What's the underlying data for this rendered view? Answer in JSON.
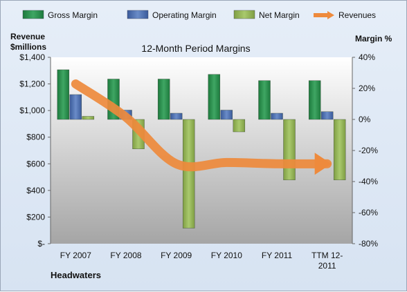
{
  "chart_data": {
    "type": "bar",
    "title": "12-Month Period Margins",
    "company": "Headwaters",
    "categories": [
      "FY 2007",
      "FY 2008",
      "FY 2009",
      "FY 2010",
      "FY 2011",
      "TTM 12-2011"
    ],
    "left_axis": {
      "label_line1": "Revenue",
      "label_line2": "$millions",
      "range": [
        0,
        1400
      ],
      "ticks": [
        0,
        200,
        400,
        600,
        800,
        1000,
        1200,
        1400
      ],
      "tick_labels": [
        "$-",
        "$200",
        "$400",
        "$600",
        "$800",
        "$1,000",
        "$1,200",
        "$1,400"
      ]
    },
    "right_axis": {
      "label": "Margin %",
      "range": [
        -80,
        40
      ],
      "ticks": [
        -80,
        -60,
        -40,
        -20,
        0,
        20,
        40
      ],
      "tick_labels": [
        "-80%",
        "-60%",
        "-40%",
        "-20%",
        "0%",
        "20%",
        "40%"
      ]
    },
    "series": [
      {
        "name": "Gross Margin",
        "axis": "right",
        "color": "#2e8b4f",
        "values": [
          32,
          26,
          26,
          29,
          25,
          25
        ]
      },
      {
        "name": "Operating Margin",
        "axis": "right",
        "color": "#4f6fae",
        "values": [
          16,
          6,
          4,
          6,
          4,
          5
        ]
      },
      {
        "name": "Net Margin",
        "axis": "right",
        "color": "#93b35a",
        "values": [
          2,
          -19,
          -70,
          -8,
          -39,
          -39
        ]
      },
      {
        "name": "Revenues",
        "axis": "left",
        "type": "line",
        "color": "#ee8a3c",
        "values": [
          1200,
          950,
          600,
          610,
          600,
          600
        ]
      }
    ],
    "legend_position": "top",
    "grid": false
  }
}
